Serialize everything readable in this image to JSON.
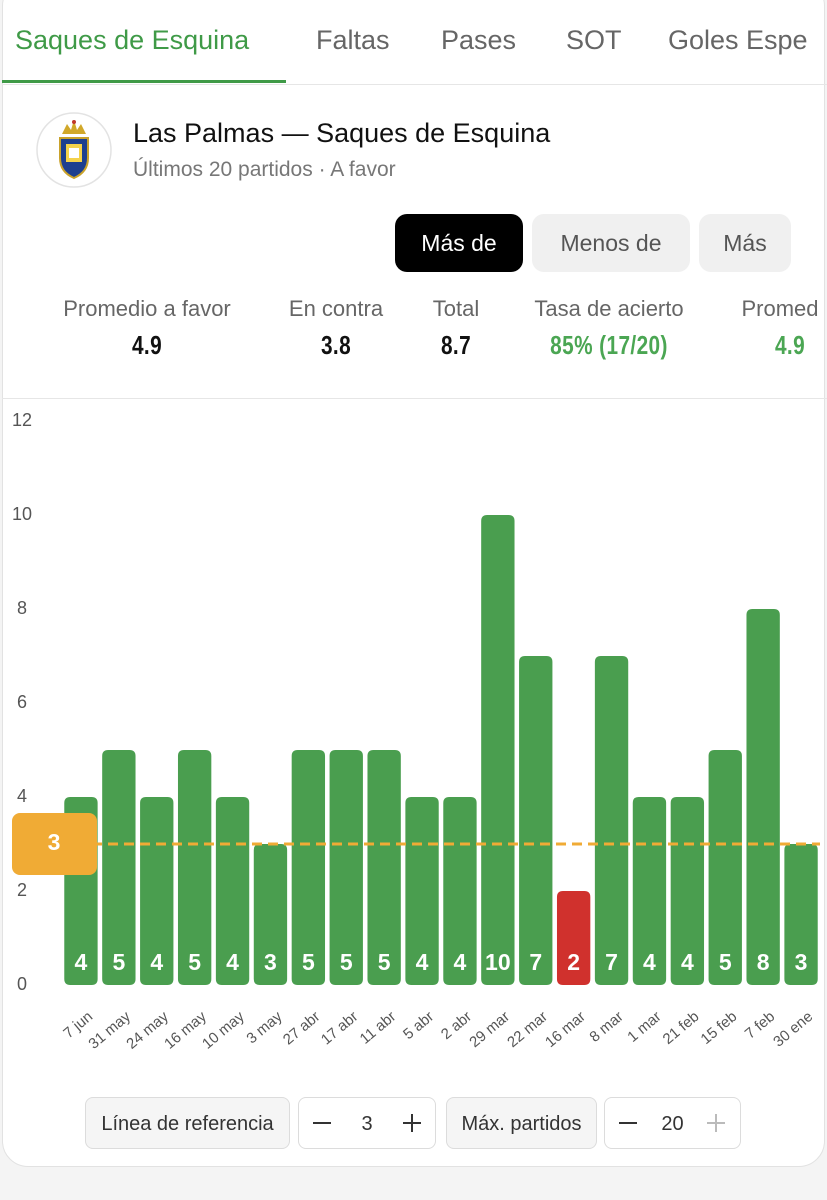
{
  "tabs": [
    "Saques de Esquina",
    "Faltas",
    "Pases",
    "SOT",
    "Goles Espe"
  ],
  "header": {
    "title": "Las Palmas — Saques de Esquina",
    "subtitle": "Últimos 20 partidos · A favor"
  },
  "toggles": [
    "Más de",
    "Menos de",
    "Más"
  ],
  "stats": [
    {
      "label": "Promedio a favor",
      "value": "4.9"
    },
    {
      "label": "En contra",
      "value": "3.8"
    },
    {
      "label": "Total",
      "value": "8.7"
    },
    {
      "label": "Tasa de acierto",
      "value": "85% (17/20)"
    },
    {
      "label": "Promed",
      "value": "4.9"
    }
  ],
  "chart_data": {
    "type": "bar",
    "categories": [
      "7 jun",
      "31 may",
      "24 may",
      "16 may",
      "10 may",
      "3 may",
      "27 abr",
      "17 abr",
      "11 abr",
      "5 abr",
      "2 abr",
      "29 mar",
      "22 mar",
      "16 mar",
      "8 mar",
      "1 mar",
      "21 feb",
      "15 feb",
      "7 feb",
      "30 ene"
    ],
    "values": [
      4,
      5,
      4,
      5,
      4,
      3,
      5,
      5,
      5,
      4,
      4,
      10,
      7,
      2,
      7,
      4,
      4,
      5,
      8,
      3
    ],
    "colors": [
      "#4a9e4f",
      "#4a9e4f",
      "#4a9e4f",
      "#4a9e4f",
      "#4a9e4f",
      "#4a9e4f",
      "#4a9e4f",
      "#4a9e4f",
      "#4a9e4f",
      "#4a9e4f",
      "#4a9e4f",
      "#4a9e4f",
      "#4a9e4f",
      "#d0312d",
      "#4a9e4f",
      "#4a9e4f",
      "#4a9e4f",
      "#4a9e4f",
      "#4a9e4f",
      "#4a9e4f"
    ],
    "ylim": [
      0,
      12
    ],
    "yticks": [
      0,
      2,
      4,
      6,
      8,
      10,
      12
    ],
    "reference_line": 3,
    "reference_color": "#f0ab35"
  },
  "controls": {
    "reference_label": "Línea de referencia",
    "max_label": "Máx. partidos",
    "max_matches": 20
  }
}
